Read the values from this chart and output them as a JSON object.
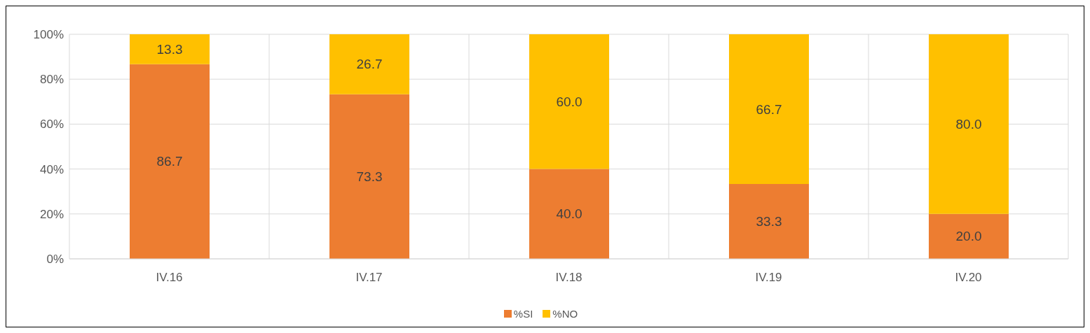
{
  "chart_data": {
    "type": "bar",
    "stacked": true,
    "categories": [
      "IV.16",
      "IV.17",
      "IV.18",
      "IV.19",
      "IV.20"
    ],
    "series": [
      {
        "name": "%SI",
        "color": "#ed7d31",
        "values": [
          86.7,
          73.3,
          40.0,
          33.3,
          20.0
        ],
        "value_labels": [
          "86.7",
          "73.3",
          "40.0",
          "33.3",
          "20.0"
        ]
      },
      {
        "name": "%NO",
        "color": "#ffc000",
        "values": [
          13.3,
          26.7,
          60.0,
          66.7,
          80.0
        ],
        "value_labels": [
          "13.3",
          "26.7",
          "60.0",
          "66.7",
          "80.0"
        ]
      }
    ],
    "ylim": [
      0,
      100
    ],
    "yticks": [
      {
        "value": 0,
        "label": "0%"
      },
      {
        "value": 20,
        "label": "20%"
      },
      {
        "value": 40,
        "label": "40%"
      },
      {
        "value": 60,
        "label": "60%"
      },
      {
        "value": 80,
        "label": "80%"
      },
      {
        "value": 100,
        "label": "100%"
      }
    ],
    "grid": true,
    "legend": "bottom"
  }
}
